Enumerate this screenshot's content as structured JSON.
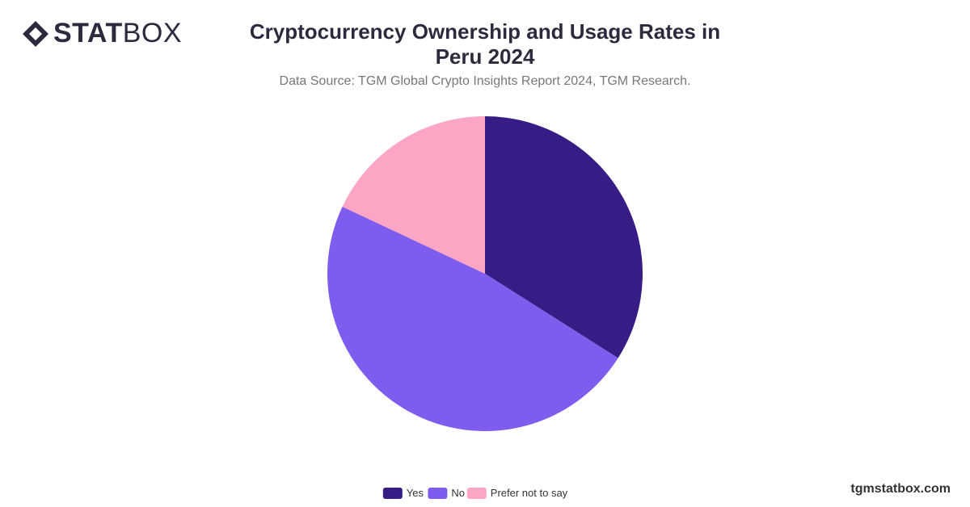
{
  "brand": {
    "bold": "STAT",
    "light": "BOX"
  },
  "footer": "tgmstatbox.com",
  "chart_data": {
    "type": "pie",
    "title": "Cryptocurrency Ownership and Usage Rates in Peru 2024",
    "subtitle": "Data Source: TGM Global Crypto Insights Report 2024, TGM Research.",
    "categories": [
      "Yes",
      "No",
      "Prefer not to say"
    ],
    "values": [
      34,
      48,
      18
    ],
    "colors": [
      "#371c85",
      "#7d5cee",
      "#fca5c4"
    ],
    "legend": "bottom"
  }
}
